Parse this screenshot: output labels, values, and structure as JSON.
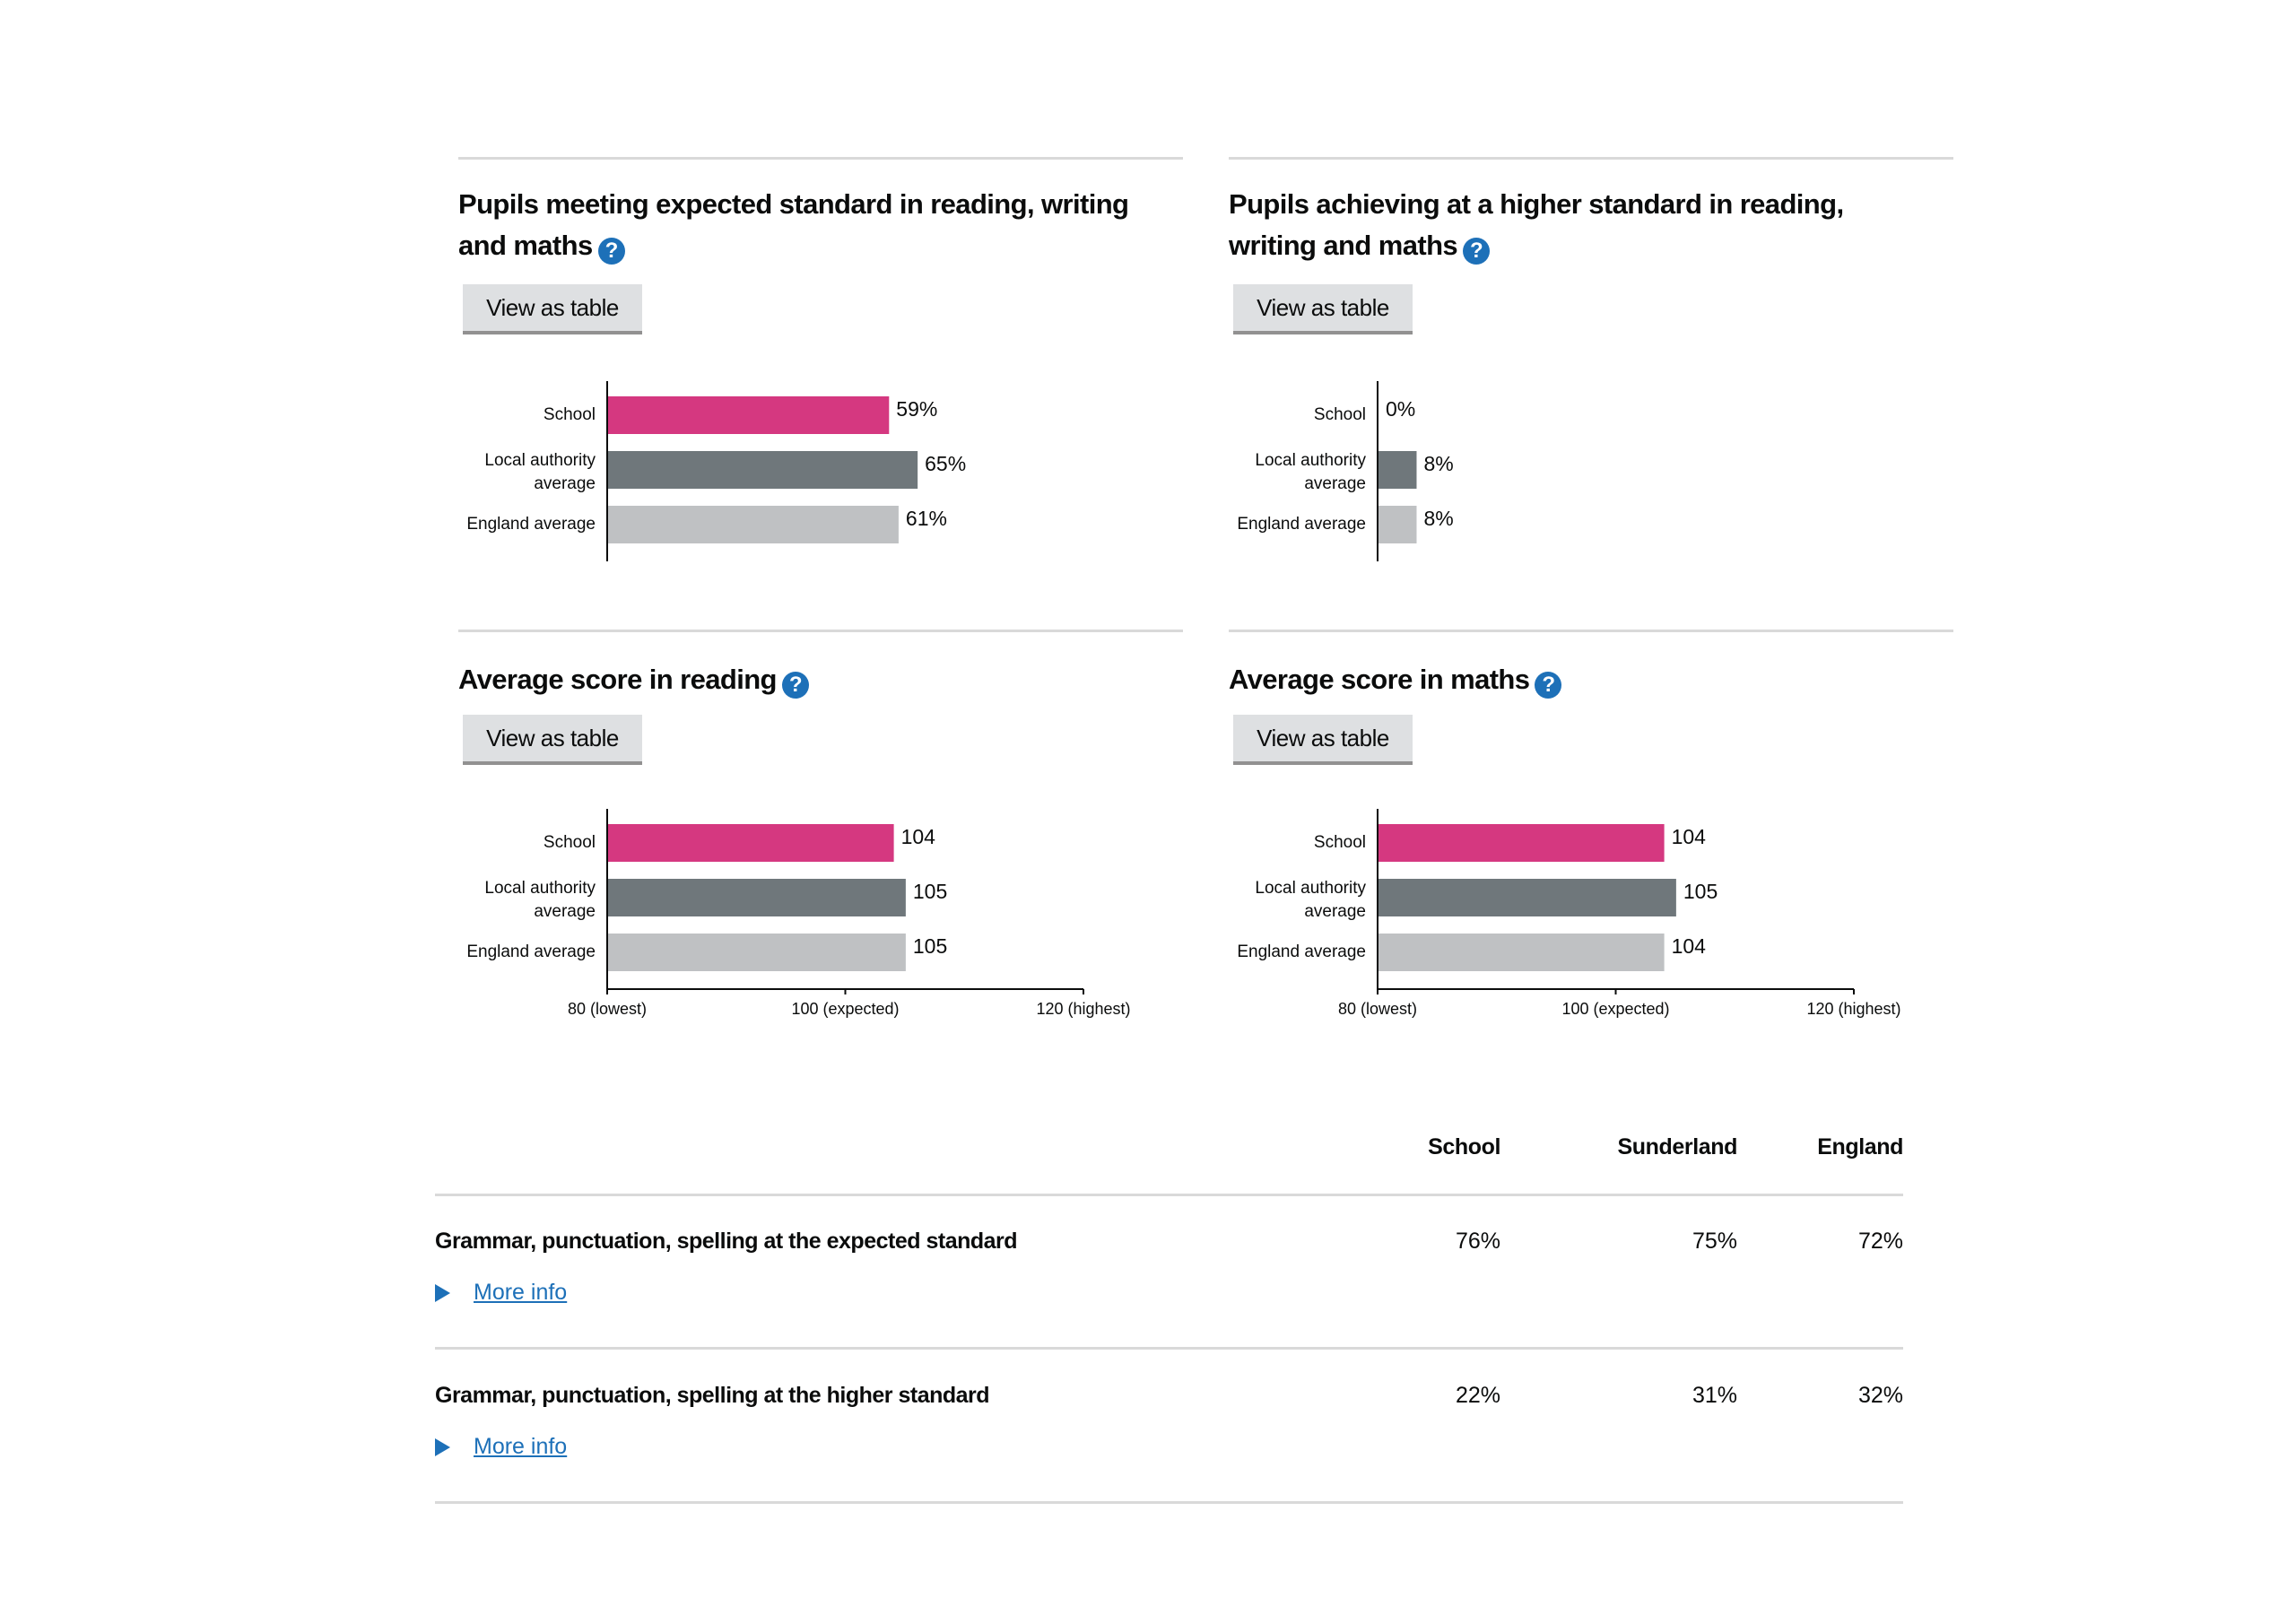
{
  "help_glyph": "?",
  "colors": {
    "school": "#d53880",
    "local_authority": "#6f777b",
    "england": "#bfc1c3",
    "link": "#1d70b8"
  },
  "panels": [
    {
      "title": "Pupils meeting expected standard in reading, writing and maths",
      "button_label": "View as table",
      "help_icon": "question-circle-icon"
    },
    {
      "title": "Pupils achieving at a higher standard in reading, writing and maths",
      "button_label": "View as table",
      "help_icon": "question-circle-icon"
    },
    {
      "title": "Average score in reading",
      "button_label": "View as table",
      "help_icon": "question-circle-icon"
    },
    {
      "title": "Average score in maths",
      "button_label": "View as table",
      "help_icon": "question-circle-icon"
    }
  ],
  "chart_data": [
    {
      "type": "bar",
      "orientation": "horizontal",
      "title": "Pupils meeting expected standard in reading, writing and maths",
      "categories": [
        "School",
        "Local authority average",
        "England average"
      ],
      "values": [
        59,
        65,
        61
      ],
      "labels": [
        "59%",
        "65%",
        "61%"
      ],
      "unit": "%",
      "xlim": [
        0,
        100
      ],
      "show_x_axis": false
    },
    {
      "type": "bar",
      "orientation": "horizontal",
      "title": "Pupils achieving at a higher standard in reading, writing and maths",
      "categories": [
        "School",
        "Local authority average",
        "England average"
      ],
      "values": [
        0,
        8,
        8
      ],
      "labels": [
        "0%",
        "8%",
        "8%"
      ],
      "unit": "%",
      "xlim": [
        0,
        100
      ],
      "show_x_axis": false
    },
    {
      "type": "bar",
      "orientation": "horizontal",
      "title": "Average score in reading",
      "categories": [
        "School",
        "Local authority average",
        "England average"
      ],
      "values": [
        104,
        105,
        105
      ],
      "labels": [
        "104",
        "105",
        "105"
      ],
      "xlim": [
        80,
        120
      ],
      "show_x_axis": true,
      "xticks": [
        80,
        100,
        120
      ],
      "xtick_labels": [
        "80 (lowest)",
        "100 (expected)",
        "120 (highest)"
      ]
    },
    {
      "type": "bar",
      "orientation": "horizontal",
      "title": "Average score in maths",
      "categories": [
        "School",
        "Local authority average",
        "England average"
      ],
      "values": [
        104,
        105,
        104
      ],
      "labels": [
        "104",
        "105",
        "104"
      ],
      "xlim": [
        80,
        120
      ],
      "show_x_axis": true,
      "xticks": [
        80,
        100,
        120
      ],
      "xtick_labels": [
        "80 (lowest)",
        "100 (expected)",
        "120 (highest)"
      ]
    }
  ],
  "table": {
    "headers": [
      "School",
      "Sunderland",
      "England"
    ],
    "rows": [
      {
        "label": "Grammar, punctuation, spelling at the expected standard",
        "values": [
          "76%",
          "75%",
          "72%"
        ],
        "link": "More info"
      },
      {
        "label": "Grammar, punctuation, spelling at the higher standard",
        "values": [
          "22%",
          "31%",
          "32%"
        ],
        "link": "More info"
      }
    ]
  }
}
